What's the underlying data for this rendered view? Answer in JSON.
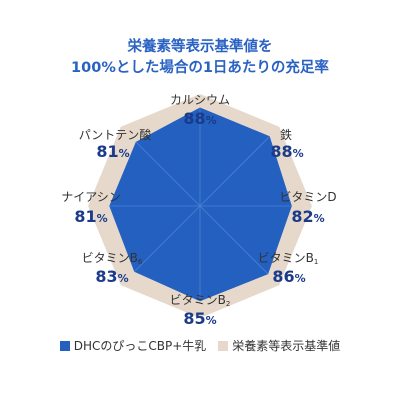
{
  "colors": {
    "product": "#2360c0",
    "reference": "#e6d9cb",
    "value_text": "#1b3a8a"
  },
  "chart_data": {
    "type": "radar",
    "title_lines": [
      "栄養素等表示基準値を",
      "100%とした場合の1日あたりの充足率"
    ],
    "unit": "%",
    "reference_value": 100,
    "axes": [
      {
        "name": "カルシウム",
        "sub": "",
        "value": 88
      },
      {
        "name": "鉄",
        "sub": "",
        "value": 88
      },
      {
        "name": "ビタミンD",
        "sub": "",
        "value": 82
      },
      {
        "name": "ビタミンB",
        "sub": "1",
        "value": 86
      },
      {
        "name": "ビタミンB",
        "sub": "2",
        "value": 85
      },
      {
        "name": "ビタミンB",
        "sub": "6",
        "value": 83
      },
      {
        "name": "ナイアシン",
        "sub": "",
        "value": 81
      },
      {
        "name": "パントテン酸",
        "sub": "",
        "value": 81
      }
    ],
    "series": [
      {
        "name": "DHCのぴっこCBP+牛乳",
        "key": "product"
      },
      {
        "name": "栄養素等表示基準値",
        "key": "reference"
      }
    ]
  }
}
